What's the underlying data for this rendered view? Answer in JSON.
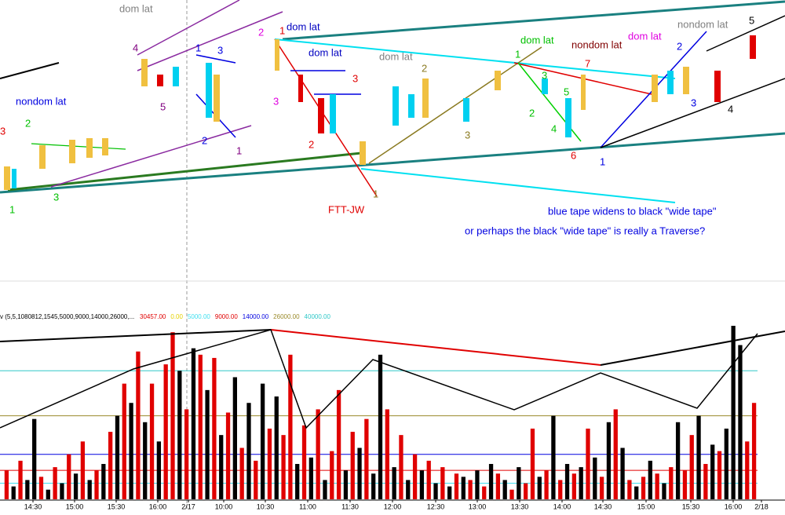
{
  "annotations": [
    "dom lat",
    "nondom lat",
    "dom lat",
    "dom lat",
    "dom lat",
    "dom lat",
    "nondom lat",
    "dom lat",
    "nondom lat",
    "FTT-JW",
    "blue tape widens to black \"wide tape\"",
    "or perhaps the black \"wide tape\" is really a Traverse?",
    "3",
    "2",
    "1",
    "3",
    "4",
    "5",
    "1",
    "3",
    "2",
    "1",
    "2",
    "3",
    "1",
    "3",
    "2",
    "1",
    "2",
    "3",
    "1",
    "3",
    "5",
    "2",
    "4",
    "7",
    "6",
    "1",
    "2",
    "3",
    "4",
    "5"
  ],
  "time_labels": [
    "14:30",
    "15:00",
    "15:30",
    "16:00",
    "2/17",
    "10:00",
    "10:30",
    "11:00",
    "11:30",
    "12:00",
    "12:30",
    "13:00",
    "13:30",
    "14:00",
    "14:30",
    "15:00",
    "15:30",
    "16:00",
    "2/18"
  ],
  "chart_data": {
    "type": "bar",
    "title": "v (5,5,1080812,1545,5000,9000,14000,26000,...",
    "readings": [
      {
        "value": 30457,
        "label": "30457.00",
        "color": "#e00000"
      },
      {
        "value": 0,
        "label": "0.00",
        "color": "#e6d200"
      }
    ],
    "levels": [
      {
        "value": 5000,
        "label": "5000.00",
        "color": "#40e0f0"
      },
      {
        "value": 9000,
        "label": "9000.00",
        "color": "#e00000"
      },
      {
        "value": 14000,
        "label": "14000.00",
        "color": "#0000e0"
      },
      {
        "value": 26000,
        "label": "26000.00",
        "color": "#9a8a2a"
      },
      {
        "value": 40000,
        "label": "40000.00",
        "color": "#30c8c8"
      }
    ],
    "ylim": [
      0,
      54000
    ],
    "values": [
      9000,
      4000,
      12000,
      6000,
      25000,
      7000,
      3000,
      10000,
      5000,
      14000,
      8000,
      18000,
      6000,
      9000,
      11000,
      21000,
      26000,
      36000,
      30000,
      46000,
      24000,
      36000,
      18000,
      42000,
      52000,
      40000,
      28000,
      47000,
      45000,
      34000,
      44000,
      20000,
      27000,
      38000,
      16000,
      30000,
      12000,
      36000,
      22000,
      32000,
      20000,
      45000,
      11000,
      23000,
      13000,
      28000,
      6000,
      15000,
      34000,
      9000,
      21000,
      16000,
      25000,
      8000,
      45000,
      28000,
      10000,
      20000,
      6000,
      14000,
      9000,
      12000,
      5000,
      10000,
      4000,
      8000,
      7000,
      6000,
      9000,
      4000,
      11000,
      8000,
      6000,
      3000,
      10000,
      5000,
      22000,
      7000,
      9000,
      26000,
      6000,
      11000,
      8000,
      10000,
      22000,
      13000,
      7000,
      24000,
      28000,
      16000,
      6000,
      4000,
      7000,
      12000,
      8000,
      5000,
      10000,
      24000,
      9000,
      20000,
      26000,
      11000,
      17000,
      15000,
      22000,
      54000,
      48000,
      18000,
      30000
    ],
    "colors": [
      "#e00000",
      "#000000",
      "#e00000",
      "#000000",
      "#000000",
      "#e00000",
      "#000000",
      "#e00000",
      "#000000",
      "#e00000",
      "#000000",
      "#e00000",
      "#000000",
      "#e00000",
      "#000000",
      "#e00000",
      "#000000",
      "#e00000",
      "#000000",
      "#e00000",
      "#000000",
      "#e00000",
      "#000000",
      "#e00000",
      "#e00000",
      "#000000",
      "#e00000",
      "#000000",
      "#e00000",
      "#000000",
      "#e00000",
      "#000000",
      "#e00000",
      "#000000",
      "#e00000",
      "#000000",
      "#e00000",
      "#000000",
      "#e00000",
      "#000000",
      "#e00000",
      "#e00000",
      "#000000",
      "#e00000",
      "#000000",
      "#e00000",
      "#000000",
      "#e00000",
      "#e00000",
      "#000000",
      "#e00000",
      "#000000",
      "#e00000",
      "#000000",
      "#000000",
      "#e00000",
      "#000000",
      "#e00000",
      "#000000",
      "#e00000",
      "#000000",
      "#e00000",
      "#000000",
      "#e00000",
      "#000000",
      "#e00000",
      "#000000",
      "#e00000",
      "#000000",
      "#e00000",
      "#000000",
      "#e00000",
      "#000000",
      "#e00000",
      "#000000",
      "#e00000",
      "#e00000",
      "#000000",
      "#e00000",
      "#000000",
      "#e00000",
      "#000000",
      "#e00000",
      "#000000",
      "#e00000",
      "#000000",
      "#e00000",
      "#000000",
      "#e00000",
      "#000000",
      "#e00000",
      "#000000",
      "#e00000",
      "#000000",
      "#e00000",
      "#000000",
      "#e00000",
      "#000000",
      "#e00000",
      "#e00000",
      "#000000",
      "#e00000",
      "#000000",
      "#e00000",
      "#000000",
      "#000000",
      "#000000",
      "#e00000",
      "#e00000"
    ]
  }
}
